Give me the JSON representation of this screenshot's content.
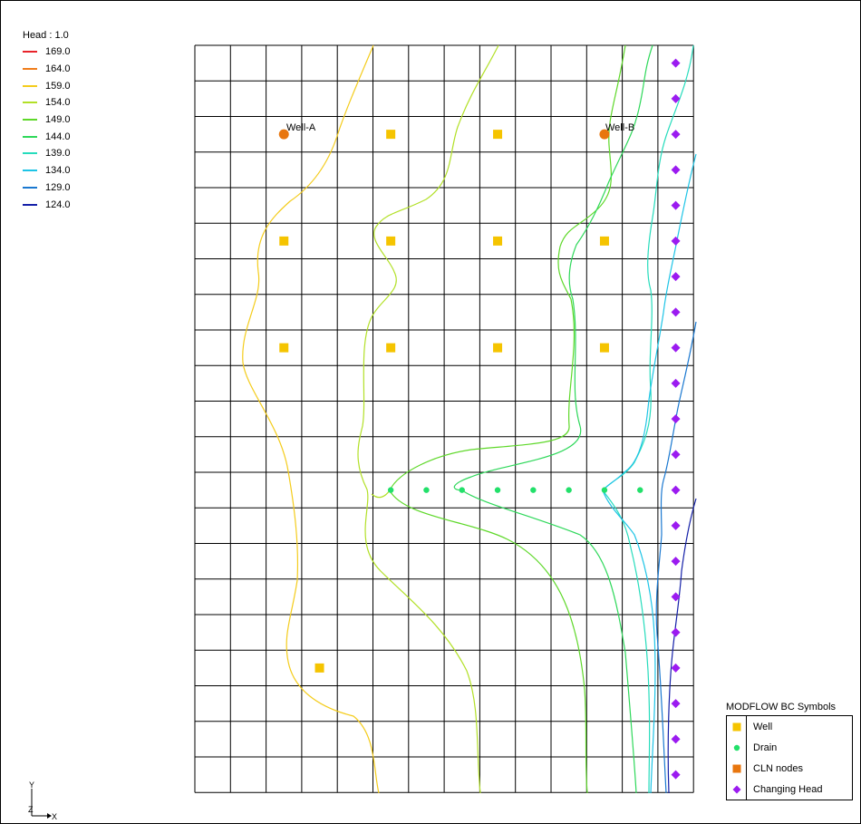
{
  "head_legend": {
    "title": "Head : 1.0",
    "entries": [
      {
        "label": "169.0",
        "color": "#e8232a"
      },
      {
        "label": "164.0",
        "color": "#f07c1a"
      },
      {
        "label": "159.0",
        "color": "#f4cc1c"
      },
      {
        "label": "154.0",
        "color": "#b2e027"
      },
      {
        "label": "149.0",
        "color": "#5ed829"
      },
      {
        "label": "144.0",
        "color": "#2ed85a"
      },
      {
        "label": "139.0",
        "color": "#26dcbc"
      },
      {
        "label": "134.0",
        "color": "#1ec4e6"
      },
      {
        "label": "129.0",
        "color": "#1a78d0"
      },
      {
        "label": "124.0",
        "color": "#1420a8"
      }
    ]
  },
  "bc_legend": {
    "title": "MODFLOW BC Symbols",
    "entries": [
      {
        "label": "Well",
        "symbol": "square",
        "color": "#f5c400"
      },
      {
        "label": "Drain",
        "symbol": "circle",
        "color": "#22e06a"
      },
      {
        "label": "CLN nodes",
        "symbol": "square",
        "color": "#e8760e"
      },
      {
        "label": "Changing Head",
        "symbol": "diamond",
        "color": "#9b1bf0"
      }
    ]
  },
  "map": {
    "labels": {
      "well_a": "Well-A",
      "well_b": "Well-B"
    },
    "colors": {
      "grid": "#000000",
      "well": "#f5c400",
      "drain": "#22e06a",
      "cln": "#e8760e",
      "chd": "#9b1bf0"
    }
  },
  "axis": {
    "y": "Y",
    "z": "Z",
    "x": "X"
  }
}
